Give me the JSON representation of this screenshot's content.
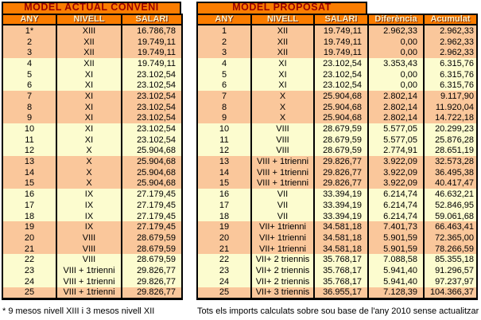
{
  "colors": {
    "header_orange": "#FB7D00",
    "title_text": "#990000",
    "header_text": "#FFF2C8",
    "row_salmon": "#FAC79B",
    "row_cream": "#FCFCCF",
    "border_black": "#000000"
  },
  "left_table": {
    "title": "MODEL ACTUAL CONVENI",
    "columns": [
      "ANY",
      "NIVELL",
      "SALARI"
    ],
    "rows": [
      [
        "1*",
        "XIII",
        "16.786,78"
      ],
      [
        "2",
        "XII",
        "19.749,11"
      ],
      [
        "3",
        "XII",
        "19.749,11"
      ],
      [
        "4",
        "XII",
        "19.749,11"
      ],
      [
        "5",
        "XI",
        "23.102,54"
      ],
      [
        "6",
        "XI",
        "23.102,54"
      ],
      [
        "7",
        "XI",
        "23.102,54"
      ],
      [
        "8",
        "XI",
        "23.102,54"
      ],
      [
        "9",
        "XI",
        "23.102,54"
      ],
      [
        "10",
        "XI",
        "23.102,54"
      ],
      [
        "11",
        "XI",
        "23.102,54"
      ],
      [
        "12",
        "X",
        "25.904,68"
      ],
      [
        "13",
        "X",
        "25.904,68"
      ],
      [
        "14",
        "X",
        "25.904,68"
      ],
      [
        "15",
        "X",
        "25.904,68"
      ],
      [
        "16",
        "IX",
        "27.179,45"
      ],
      [
        "17",
        "IX",
        "27.179,45"
      ],
      [
        "18",
        "IX",
        "27.179,45"
      ],
      [
        "19",
        "IX",
        "27.179,45"
      ],
      [
        "20",
        "VIII",
        "28.679,59"
      ],
      [
        "21",
        "VIII",
        "28.679,59"
      ],
      [
        "22",
        "VIII",
        "28.679,59"
      ],
      [
        "23",
        "VIII + 1trienni",
        "29.826,77"
      ],
      [
        "24",
        "VIII + 1trienni",
        "29.826,77"
      ],
      [
        "25",
        "VIII + 1trienni",
        "29.826,77"
      ]
    ],
    "footnote": "* 9 mesos nivell XIII i 3 mesos nivell XII"
  },
  "right_table": {
    "title": "MODEL PROPOSAT",
    "columns": [
      "ANY",
      "NIVELL",
      "SALARI",
      "Diferència",
      "Acumulat"
    ],
    "rows": [
      [
        "1",
        "XII",
        "19.749,11",
        "2.962,33",
        "2.962,33"
      ],
      [
        "2",
        "XII",
        "19.749,11",
        "0,00",
        "2.962,33"
      ],
      [
        "3",
        "XII",
        "19.749,11",
        "0,00",
        "2.962,33"
      ],
      [
        "4",
        "XI",
        "23.102,54",
        "3.353,43",
        "6.315,76"
      ],
      [
        "5",
        "XI",
        "23.102,54",
        "0,00",
        "6.315,76"
      ],
      [
        "6",
        "XI",
        "23.102,54",
        "0,00",
        "6.315,76"
      ],
      [
        "7",
        "X",
        "25.904,68",
        "2.802,14",
        "9.117,90"
      ],
      [
        "8",
        "X",
        "25.904,68",
        "2.802,14",
        "11.920,04"
      ],
      [
        "9",
        "X",
        "25.904,68",
        "2.802,14",
        "14.722,18"
      ],
      [
        "10",
        "VIII",
        "28.679,59",
        "5.577,05",
        "20.299,23"
      ],
      [
        "11",
        "VIII",
        "28.679,59",
        "5.577,05",
        "25.876,28"
      ],
      [
        "12",
        "VIII",
        "28.679,59",
        "2.774,91",
        "28.651,19"
      ],
      [
        "13",
        "VIII + 1trienni",
        "29.826,77",
        "3.922,09",
        "32.573,28"
      ],
      [
        "14",
        "VIII + 1trienni",
        "29.826,77",
        "3.922,09",
        "36.495,38"
      ],
      [
        "15",
        "VIII + 1trienni",
        "29.826,77",
        "3.922,09",
        "40.417,47"
      ],
      [
        "16",
        "VII",
        "33.394,19",
        "6.214,74",
        "46.632,21"
      ],
      [
        "17",
        "VII",
        "33.394,19",
        "6.214,74",
        "52.846,95"
      ],
      [
        "18",
        "VII",
        "33.394,19",
        "6.214,74",
        "59.061,68"
      ],
      [
        "19",
        "VII+ 1trienni",
        "34.581,18",
        "7.401,73",
        "66.463,41"
      ],
      [
        "20",
        "VII+ 1trienni",
        "34.581,18",
        "5.901,59",
        "72.365,00"
      ],
      [
        "21",
        "VII+ 1trienni",
        "34.581,18",
        "5.901,59",
        "78.266,59"
      ],
      [
        "22",
        "VII+ 2 triennis",
        "35.768,17",
        "7.088,58",
        "85.355,18"
      ],
      [
        "23",
        "VII+ 2 triennis",
        "35.768,17",
        "5.941,40",
        "91.296,57"
      ],
      [
        "24",
        "VII+ 2 triennis",
        "35.768,17",
        "5.941,40",
        "97.237,97"
      ],
      [
        "25",
        "VII+ 3 triennis",
        "36.955,17",
        "7.128,39",
        "104.366,37"
      ]
    ],
    "footnote": "Tots els imports calculats sobre sou base de l'any 2010 sense actualitzar"
  }
}
